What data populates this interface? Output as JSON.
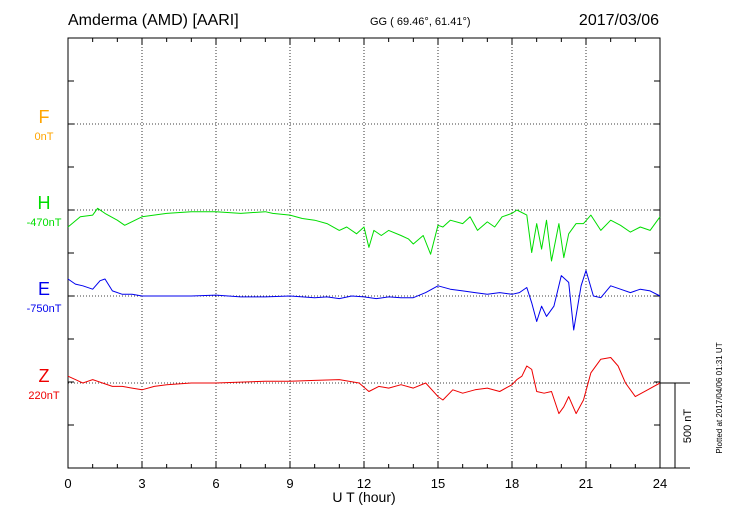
{
  "header": {
    "station": "Amderma (AMD)  [AARI]",
    "coords": "GG ( 69.46°,  61.41°)",
    "date": "2017/03/06"
  },
  "footer": {
    "plotted": "Plotted at 2017/04/06 01:31  UT",
    "scale_label": "500 nT"
  },
  "chart_data": {
    "type": "line",
    "title": "Amderma (AMD)  [AARI]",
    "xlabel": "U T (hour)",
    "xlim": [
      0,
      24
    ],
    "xticks": [
      0,
      3,
      6,
      9,
      12,
      15,
      18,
      21,
      24
    ],
    "grid": true,
    "scale_nT": 500,
    "channels": [
      {
        "name": "F",
        "baseline": "0nT",
        "color": "#ffa500",
        "x": [],
        "y": []
      },
      {
        "name": "H",
        "baseline": "-470nT",
        "color": "#00dd00",
        "x": [
          0,
          0.5,
          1,
          1.2,
          1.5,
          2,
          2.3,
          3,
          4,
          5,
          6,
          7,
          8,
          8.3,
          9,
          9.5,
          10,
          10.5,
          11,
          11.3,
          11.7,
          12,
          12.2,
          12.4,
          12.7,
          13,
          13.5,
          13.8,
          14,
          14.4,
          14.7,
          15,
          15.2,
          15.5,
          16,
          16.3,
          16.6,
          17,
          17.3,
          17.6,
          18,
          18.2,
          18.6,
          18.8,
          19,
          19.2,
          19.4,
          19.6,
          19.9,
          20.1,
          20.3,
          20.6,
          20.9,
          21.2,
          21.6,
          22,
          22.4,
          22.8,
          23.2,
          23.6,
          24
        ],
        "y": [
          -100,
          -40,
          -30,
          10,
          -20,
          -60,
          -90,
          -40,
          -20,
          -10,
          -10,
          -20,
          -10,
          -20,
          -30,
          -50,
          -60,
          -80,
          -120,
          -100,
          -140,
          -100,
          -220,
          -120,
          -150,
          -120,
          -150,
          -170,
          -200,
          -150,
          -260,
          -90,
          -100,
          -60,
          -80,
          -40,
          -120,
          -70,
          -100,
          -40,
          -20,
          0,
          -30,
          -250,
          -80,
          -230,
          -60,
          -300,
          -80,
          -280,
          -140,
          -80,
          -80,
          -30,
          -120,
          -60,
          -90,
          -130,
          -100,
          -120,
          -40
        ]
      },
      {
        "name": "E",
        "baseline": "-750nT",
        "color": "#0000ee",
        "x": [
          0,
          0.3,
          0.6,
          1,
          1.3,
          1.5,
          1.8,
          2.2,
          2.6,
          3,
          4,
          5,
          6,
          7,
          8,
          9,
          10,
          10.5,
          11,
          11.5,
          12,
          12.5,
          13,
          13.5,
          14,
          14.5,
          15,
          15.5,
          16,
          16.5,
          17,
          17.5,
          18,
          18.3,
          18.6,
          18.8,
          19,
          19.2,
          19.4,
          19.7,
          20,
          20.3,
          20.5,
          20.8,
          21,
          21.3,
          21.6,
          22,
          22.4,
          22.8,
          23.2,
          23.6,
          24
        ],
        "y": [
          100,
          70,
          60,
          40,
          90,
          100,
          30,
          10,
          10,
          0,
          0,
          0,
          5,
          -5,
          -5,
          0,
          -10,
          -5,
          -15,
          0,
          -5,
          -15,
          -5,
          -10,
          -10,
          20,
          60,
          40,
          30,
          20,
          10,
          20,
          10,
          20,
          50,
          -40,
          -150,
          -60,
          -120,
          -60,
          120,
          80,
          -200,
          60,
          150,
          0,
          -10,
          60,
          40,
          20,
          40,
          30,
          0
        ]
      },
      {
        "name": "Z",
        "baseline": "220nT",
        "color": "#ee0000",
        "x": [
          0,
          0.3,
          0.6,
          1,
          1.4,
          1.8,
          2.2,
          2.6,
          3,
          3.5,
          4,
          5,
          6,
          7,
          8,
          9,
          10,
          11,
          11.8,
          12.2,
          12.6,
          13,
          13.5,
          14,
          14.5,
          15,
          15.2,
          15.6,
          16,
          16.5,
          17,
          17.5,
          18,
          18.2,
          18.4,
          18.6,
          18.8,
          19,
          19.3,
          19.6,
          19.9,
          20.1,
          20.3,
          20.6,
          20.9,
          21.2,
          21.6,
          22,
          22.3,
          22.6,
          23,
          23.5,
          24
        ],
        "y": [
          40,
          20,
          0,
          20,
          0,
          -20,
          -20,
          -30,
          -40,
          -20,
          -10,
          0,
          0,
          5,
          10,
          10,
          15,
          20,
          0,
          -50,
          -20,
          -30,
          -10,
          -30,
          0,
          -80,
          -100,
          -40,
          -60,
          -40,
          -30,
          -50,
          -10,
          20,
          40,
          100,
          80,
          -50,
          -60,
          -50,
          -180,
          -140,
          -80,
          -180,
          -100,
          60,
          140,
          150,
          100,
          0,
          -80,
          -40,
          0
        ]
      }
    ]
  }
}
